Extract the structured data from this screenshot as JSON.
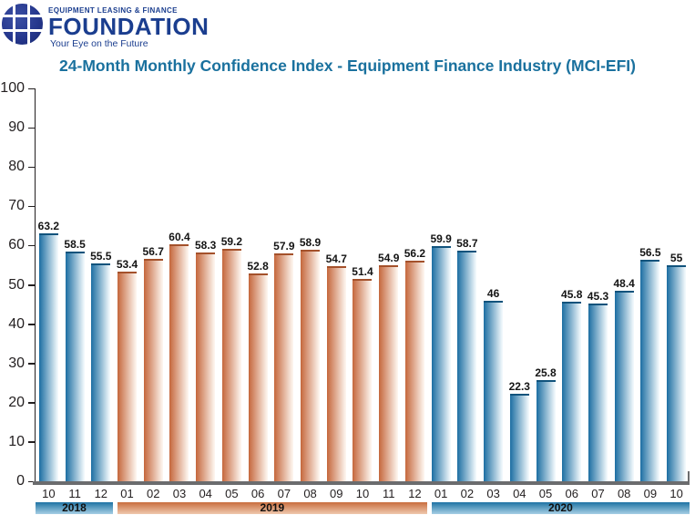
{
  "logo": {
    "org_line": "EQUIPMENT LEASING & FINANCE",
    "name": "FOUNDATION",
    "tagline": "Your Eye on the Future",
    "globe_icon": "segmented-globe-icon"
  },
  "title": "24-Month Monthly Confidence Index - Equipment Finance Industry (MCI-EFI)",
  "colors": {
    "title": "#1a719e",
    "navy": "#1b3e8f",
    "text": "#231f20",
    "axis_gray": "#6b6c6e",
    "blue_dark": "#1c6ea2",
    "blue_light": "#f2f9fc",
    "blue_top": "#11537c",
    "orange_dark": "#c5673c",
    "orange_light": "#fdf5ee",
    "orange_top": "#a4512b",
    "band_blue_top": "#1f73a4",
    "band_blue_bottom": "#a6cfe4",
    "band_orange_top": "#c96e3e",
    "band_orange_bottom": "#f0c9ae"
  },
  "chart_data": {
    "type": "bar",
    "title": "24-Month Monthly Confidence Index - Equipment Finance Industry (MCI-EFI)",
    "xlabel": "",
    "ylabel": "",
    "ylim": [
      0,
      100
    ],
    "yticks": [
      0,
      10,
      20,
      30,
      40,
      50,
      60,
      70,
      80,
      90,
      100
    ],
    "grid": false,
    "legend": false,
    "data_labels": true,
    "groups": [
      {
        "year": "2018",
        "color": "blue",
        "months": [
          "10",
          "11",
          "12"
        ],
        "values": [
          63.2,
          58.5,
          55.5
        ]
      },
      {
        "year": "2019",
        "color": "orange",
        "months": [
          "01",
          "02",
          "03",
          "04",
          "05",
          "06",
          "07",
          "08",
          "09",
          "10",
          "11",
          "12"
        ],
        "values": [
          53.4,
          56.7,
          60.4,
          58.3,
          59.2,
          52.8,
          57.9,
          58.9,
          54.7,
          51.4,
          54.9,
          56.2
        ]
      },
      {
        "year": "2020",
        "color": "blue",
        "months": [
          "01",
          "02",
          "03",
          "04",
          "05",
          "06",
          "07",
          "08",
          "09",
          "10"
        ],
        "values": [
          59.9,
          58.7,
          46,
          22.3,
          25.8,
          45.8,
          45.3,
          48.4,
          56.5,
          55
        ]
      }
    ]
  }
}
